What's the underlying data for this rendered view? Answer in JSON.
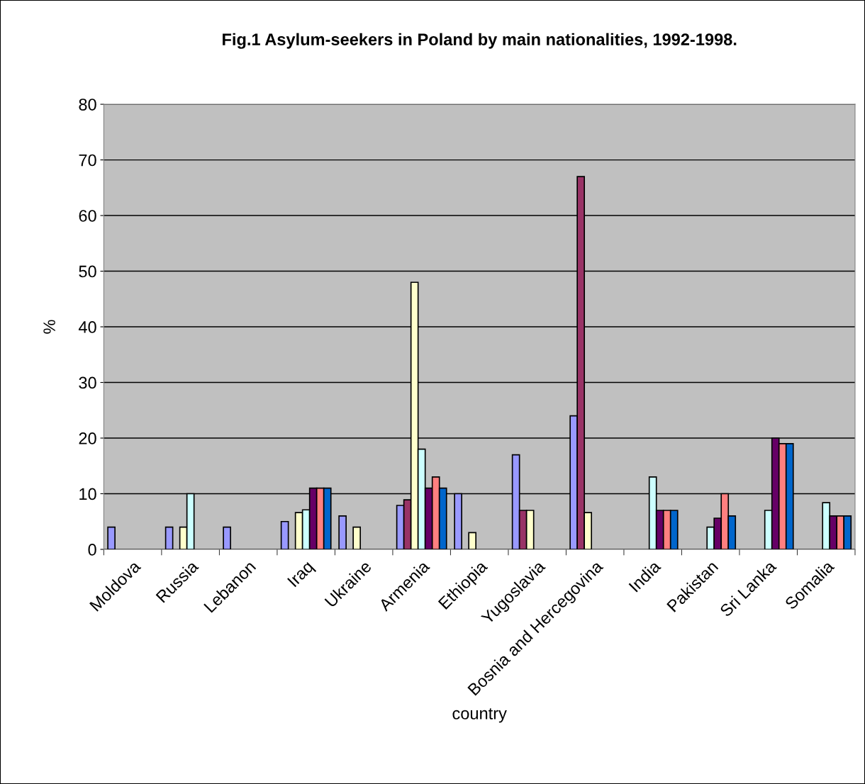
{
  "chart_data": {
    "type": "bar",
    "title": "Fig.1 Asylum-seekers in Poland by main nationalities, 1992-1998.",
    "xlabel": "country",
    "ylabel": "%",
    "categories": [
      "Moldova",
      "Russia",
      "Lebanon",
      "Iraq",
      "Ukraine",
      "Armenia",
      "Ethiopia",
      "Yugoslavia",
      "Bosnia and Hercegovina",
      "India",
      "Pakistan",
      "Sri Lanka",
      "Somalia"
    ],
    "series": [
      {
        "color": "#9999ff",
        "values": [
          4,
          4,
          4,
          5,
          6,
          7.9,
          10,
          17,
          24,
          null,
          null,
          null,
          null
        ]
      },
      {
        "color": "#993366",
        "values": [
          null,
          null,
          null,
          null,
          null,
          8.9,
          null,
          7,
          67,
          null,
          null,
          null,
          null
        ]
      },
      {
        "color": "#ffffcc",
        "values": [
          null,
          4,
          null,
          6.6,
          4,
          48,
          3,
          7,
          6.6,
          null,
          null,
          null,
          null
        ]
      },
      {
        "color": "#ccffff",
        "values": [
          null,
          10,
          null,
          7.1,
          null,
          18,
          null,
          null,
          null,
          13,
          4,
          7,
          8.4
        ]
      },
      {
        "color": "#660066",
        "values": [
          null,
          null,
          null,
          11,
          null,
          11,
          null,
          null,
          null,
          7,
          5.6,
          20,
          6
        ]
      },
      {
        "color": "#ff8080",
        "values": [
          null,
          null,
          null,
          11,
          null,
          13,
          null,
          null,
          null,
          7,
          10,
          19,
          6
        ]
      },
      {
        "color": "#0066cc",
        "values": [
          null,
          null,
          null,
          11,
          null,
          11,
          null,
          null,
          null,
          7,
          6,
          19,
          6
        ]
      }
    ],
    "ylim": [
      0,
      80
    ],
    "yticks": [
      0,
      10,
      20,
      30,
      40,
      50,
      60,
      70,
      80
    ],
    "grid": "y"
  }
}
